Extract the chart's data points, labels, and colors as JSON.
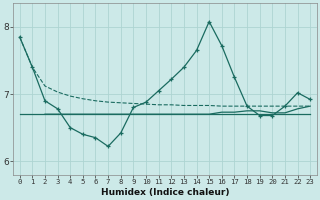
{
  "background_color": "#cce9e8",
  "grid_color": "#add4d2",
  "line_color": "#1a6b60",
  "xlabel": "Humidex (Indice chaleur)",
  "ylim": [
    5.8,
    8.35
  ],
  "xlim": [
    -0.5,
    23.5
  ],
  "yticks": [
    6,
    7,
    8
  ],
  "xticks": [
    0,
    1,
    2,
    3,
    4,
    5,
    6,
    7,
    8,
    9,
    10,
    11,
    12,
    13,
    14,
    15,
    16,
    17,
    18,
    19,
    20,
    21,
    22,
    23
  ],
  "series_dashed_x": [
    0,
    1,
    2,
    3,
    4,
    5,
    6,
    7,
    8,
    9,
    10,
    11,
    12,
    13,
    14,
    15,
    16,
    17,
    18,
    19,
    20,
    21,
    22,
    23
  ],
  "series_dashed_y": [
    7.85,
    7.4,
    7.12,
    7.03,
    6.97,
    6.93,
    6.9,
    6.88,
    6.87,
    6.86,
    6.85,
    6.84,
    6.84,
    6.83,
    6.83,
    6.83,
    6.82,
    6.82,
    6.82,
    6.82,
    6.82,
    6.82,
    6.82,
    6.82
  ],
  "series_main_x": [
    0,
    1,
    2,
    3,
    4,
    5,
    6,
    7,
    8,
    9,
    10,
    11,
    12,
    13,
    14,
    15,
    16,
    17,
    18,
    19,
    20,
    21,
    22,
    23
  ],
  "series_main_y": [
    7.85,
    7.4,
    6.9,
    6.78,
    6.5,
    6.4,
    6.35,
    6.22,
    6.42,
    6.8,
    6.88,
    7.05,
    7.22,
    7.4,
    7.65,
    8.08,
    7.72,
    7.25,
    6.82,
    6.68,
    6.68,
    6.82,
    7.02,
    6.92
  ],
  "series_flat1_x": [
    0,
    1,
    2,
    3,
    4,
    5,
    6,
    7,
    8,
    9,
    10,
    11,
    12,
    13,
    14,
    15,
    16,
    17,
    18,
    19,
    20,
    21,
    22,
    23
  ],
  "series_flat1_y": [
    6.7,
    6.7,
    6.7,
    6.7,
    6.7,
    6.7,
    6.7,
    6.7,
    6.7,
    6.7,
    6.7,
    6.7,
    6.7,
    6.7,
    6.7,
    6.7,
    6.7,
    6.7,
    6.7,
    6.7,
    6.7,
    6.7,
    6.7,
    6.7
  ],
  "series_flat2_x": [
    2,
    3,
    4,
    5,
    6,
    7,
    8,
    9,
    10,
    11,
    12,
    13,
    14,
    15,
    16,
    17,
    18,
    19,
    20,
    21,
    22,
    23
  ],
  "series_flat2_y": [
    6.7,
    6.7,
    6.7,
    6.7,
    6.7,
    6.7,
    6.7,
    6.7,
    6.7,
    6.7,
    6.7,
    6.7,
    6.7,
    6.7,
    6.73,
    6.73,
    6.75,
    6.75,
    6.72,
    6.72,
    6.78,
    6.82
  ]
}
